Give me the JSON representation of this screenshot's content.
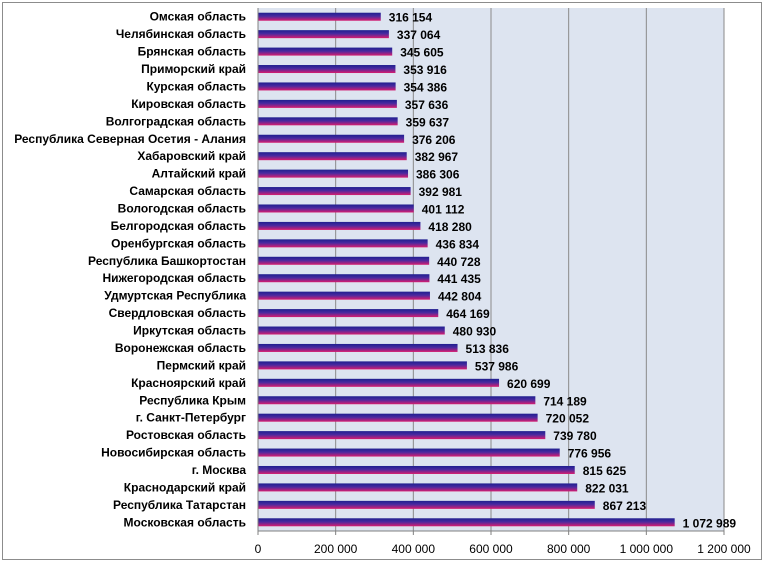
{
  "chart_data": {
    "type": "bar",
    "orientation": "horizontal",
    "categories": [
      "Омская область",
      "Челябинская область",
      "Брянская область",
      "Приморский край",
      "Курская область",
      "Кировская область",
      "Волгоградская область",
      "Республика Северная Осетия - Алания",
      "Хабаровский край",
      "Алтайский край",
      "Самарская область",
      "Вологодская область",
      "Белгородская область",
      "Оренбургская область",
      "Республика Башкортостан",
      "Нижегородская область",
      "Удмуртская Республика",
      "Свердловская область",
      "Иркутская область",
      "Воронежская область",
      "Пермский край",
      "Красноярский край",
      "Республика Крым",
      "г. Санкт-Петербург",
      "Ростовская область",
      "Новосибирская область",
      "г. Москва",
      "Краснодарский край",
      "Республика Татарстан",
      "Московская область"
    ],
    "values": [
      316154,
      337064,
      345605,
      353916,
      354386,
      357636,
      359637,
      376206,
      382967,
      386306,
      392981,
      401112,
      418280,
      436834,
      440728,
      441435,
      442804,
      464169,
      480930,
      513836,
      537986,
      620699,
      714189,
      720052,
      739780,
      776956,
      815625,
      822031,
      867213,
      1072989
    ],
    "value_labels": [
      "316 154",
      "337 064",
      "345 605",
      "353 916",
      "354 386",
      "357 636",
      "359 637",
      "376 206",
      "382 967",
      "386 306",
      "392 981",
      "401 112",
      "418 280",
      "436 834",
      "440 728",
      "441 435",
      "442 804",
      "464 169",
      "480 930",
      "513 836",
      "537 986",
      "620 699",
      "714 189",
      "720 052",
      "739 780",
      "776 956",
      "815 625",
      "822 031",
      "867 213",
      "1 072 989"
    ],
    "xlim": [
      0,
      1200000
    ],
    "x_ticks": [
      0,
      200000,
      400000,
      600000,
      800000,
      1000000,
      1200000
    ],
    "x_tick_labels": [
      "0",
      "200 000",
      "400 000",
      "600 000",
      "800 000",
      "1 000 000",
      "1 200 000"
    ],
    "grid": "vertical",
    "legend": "none",
    "colors": {
      "plot_background": "#dde4f0",
      "bar_top": "#1f1f8f",
      "bar_bottom": "#d81c6f",
      "gridline": "#8a8a8a"
    }
  }
}
